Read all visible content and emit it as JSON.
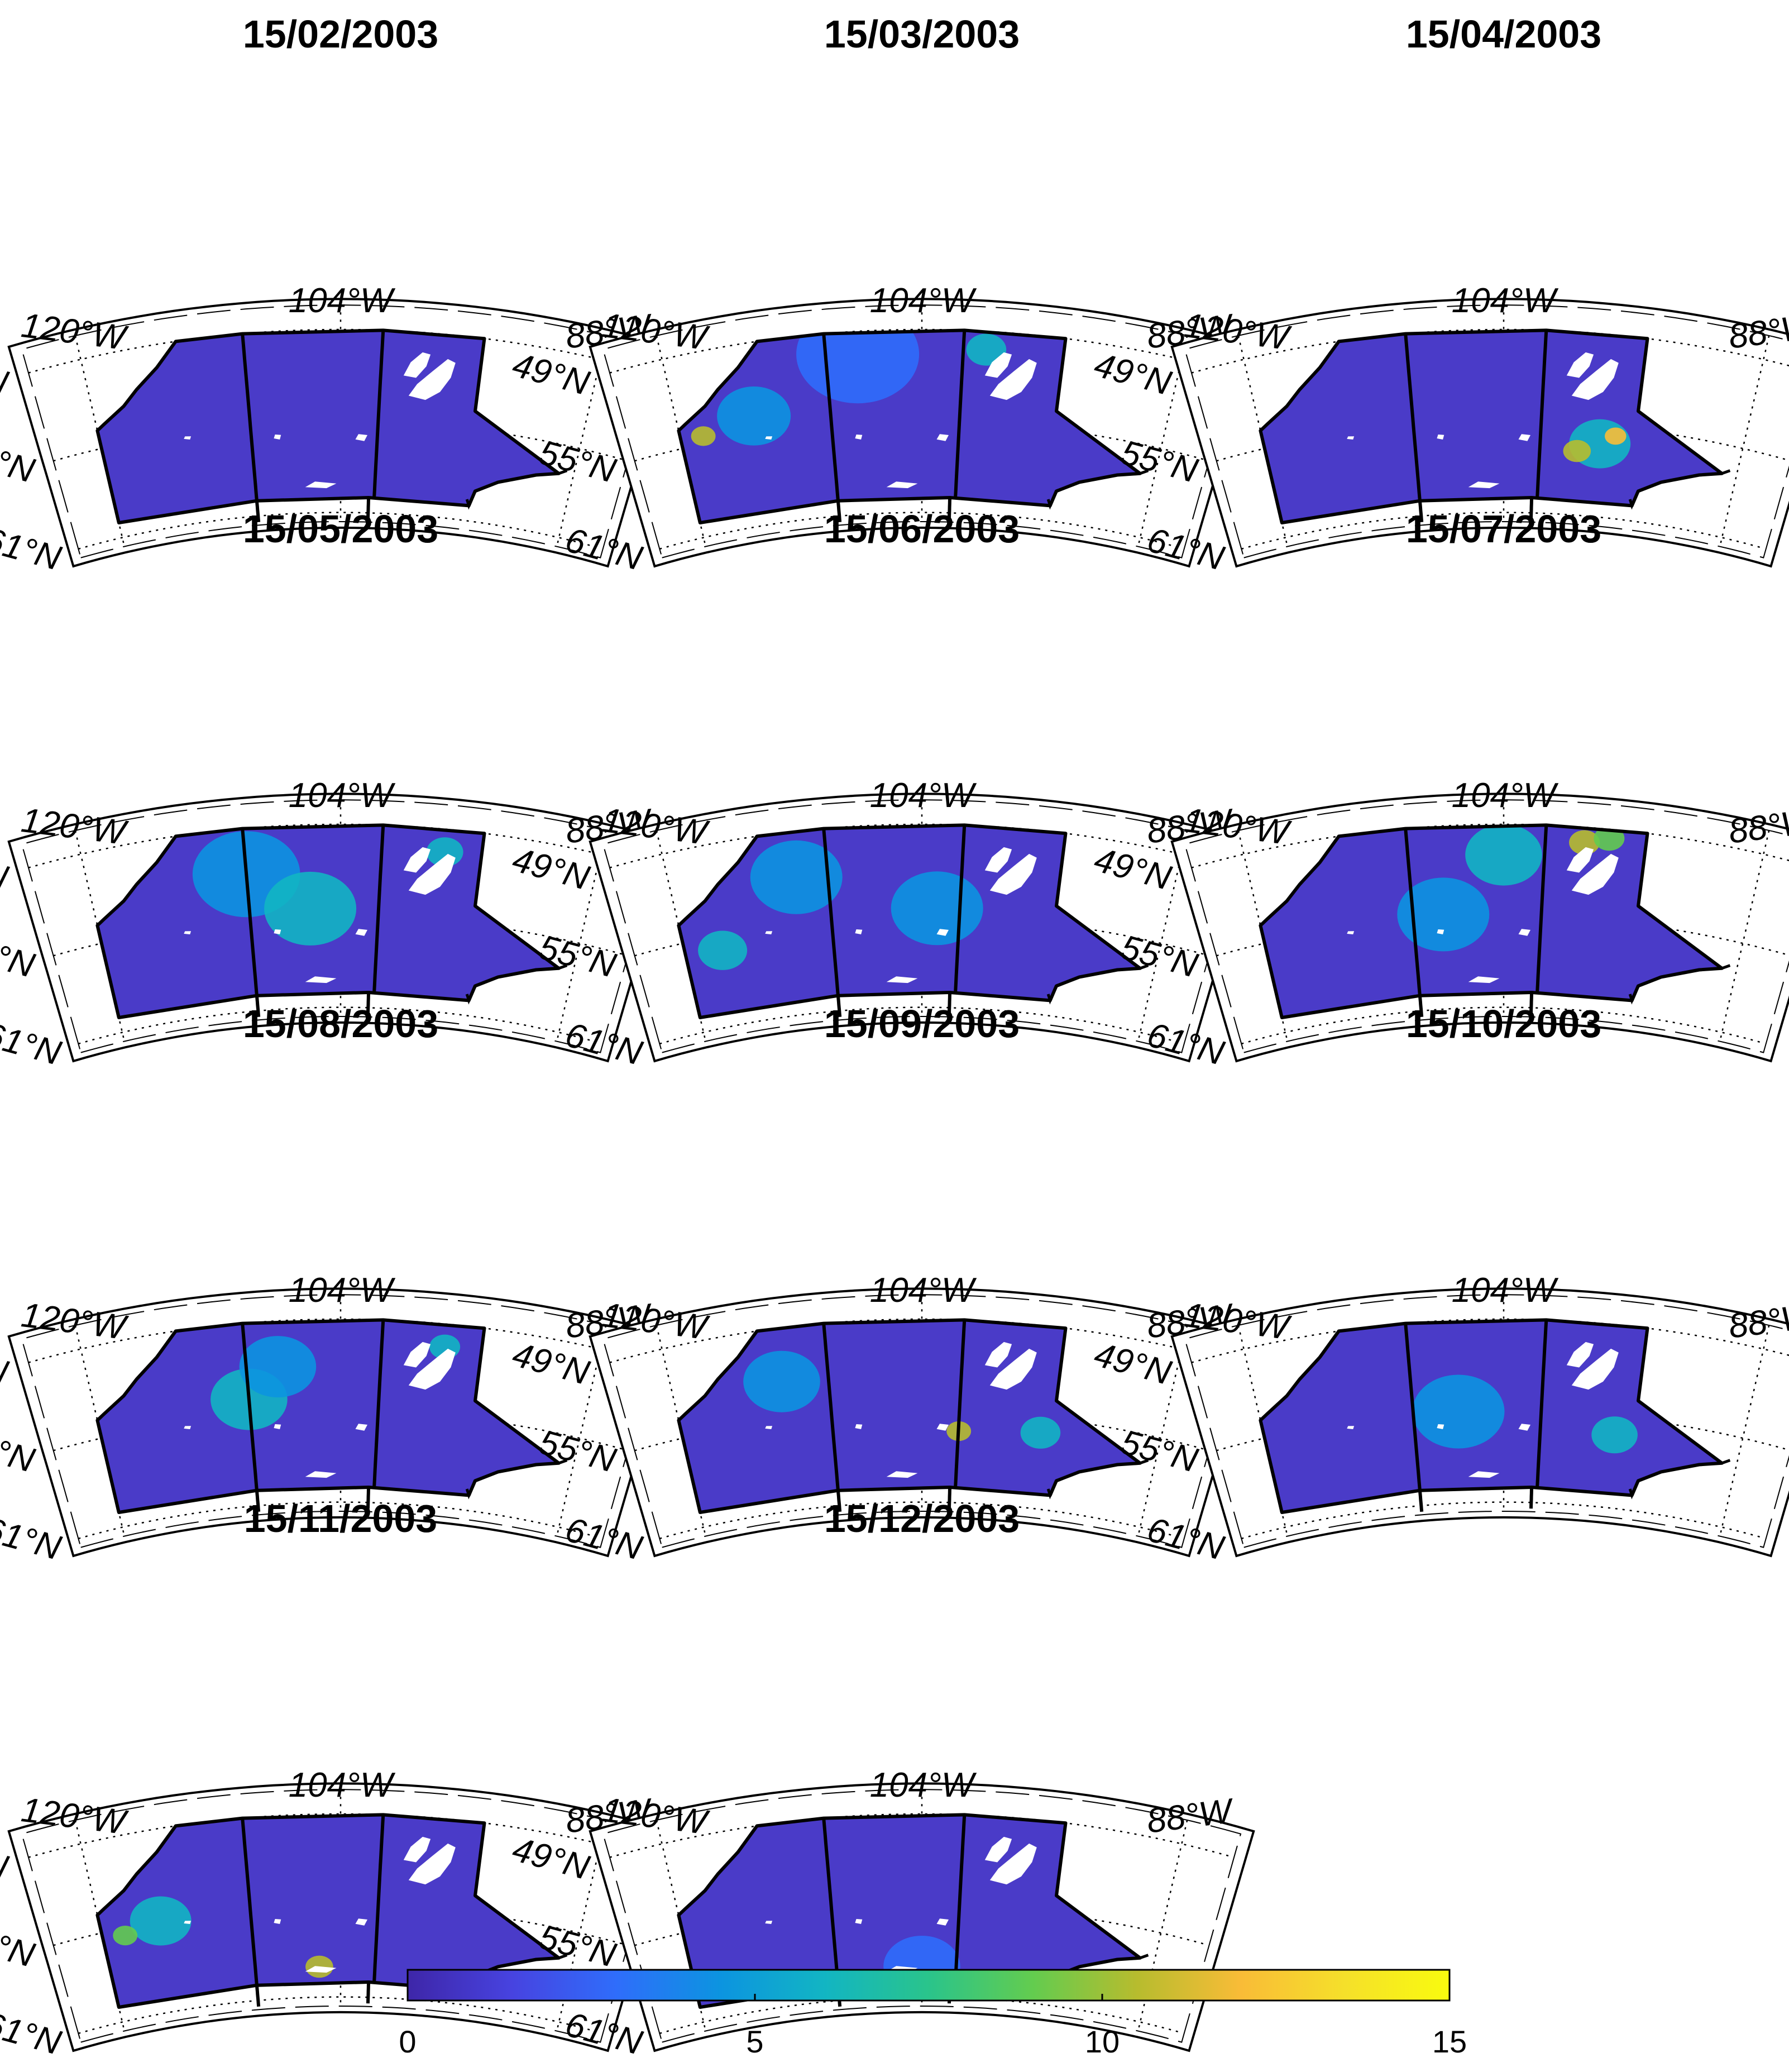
{
  "figure": {
    "panels": [
      {
        "title": "15/02/2003",
        "hotspots": []
      },
      {
        "title": "15/03/2003",
        "hotspots": [
          {
            "lon": -118.5,
            "lat": 54.5,
            "value": 11,
            "r": 0.8
          },
          {
            "lon": -100,
            "lat": 50.2,
            "value": 6.5,
            "r": 1.3
          },
          {
            "lon": -115,
            "lat": 53.8,
            "value": 5,
            "r": 2.4
          },
          {
            "lon": -108,
            "lat": 50.5,
            "value": 3.5,
            "r": 4.0
          }
        ]
      },
      {
        "title": "15/04/2003",
        "hotspots": [
          {
            "lon": -99,
            "lat": 56.8,
            "value": 11,
            "r": 0.9
          },
          {
            "lon": -96.5,
            "lat": 55.6,
            "value": 12,
            "r": 0.7
          },
          {
            "lon": -118.5,
            "lat": 50.5,
            "value": 10,
            "r": 0.5
          },
          {
            "lon": -97.5,
            "lat": 56.2,
            "value": 6,
            "r": 2.0
          }
        ]
      },
      {
        "title": "15/05/2003",
        "hotspots": [
          {
            "lon": -106,
            "lat": 54.5,
            "value": 5.5,
            "r": 3.0
          },
          {
            "lon": -97.5,
            "lat": 50.5,
            "value": 6,
            "r": 1.2
          },
          {
            "lon": -110,
            "lat": 52,
            "value": 4,
            "r": 3.5
          }
        ]
      },
      {
        "title": "15/06/2003",
        "hotspots": [
          {
            "lon": -117.5,
            "lat": 56,
            "value": 6,
            "r": 1.6
          },
          {
            "lon": -112,
            "lat": 52,
            "value": 4,
            "r": 3.0
          },
          {
            "lon": -103,
            "lat": 54.5,
            "value": 3.8,
            "r": 3.0
          }
        ]
      },
      {
        "title": "15/07/2003",
        "hotspots": [
          {
            "lon": -99,
            "lat": 50,
            "value": 10.5,
            "r": 1.0
          },
          {
            "lon": -97.5,
            "lat": 49.6,
            "value": 8.5,
            "r": 1.0
          },
          {
            "lon": -104,
            "lat": 51,
            "value": 5.5,
            "r": 2.5
          },
          {
            "lon": -108,
            "lat": 54.8,
            "value": 4.5,
            "r": 3.0
          }
        ]
      },
      {
        "title": "15/08/2003",
        "hotspots": [
          {
            "lon": -110,
            "lat": 54,
            "value": 5.5,
            "r": 2.5
          },
          {
            "lon": -108,
            "lat": 52,
            "value": 5,
            "r": 2.5
          },
          {
            "lon": -97.5,
            "lat": 50.5,
            "value": 5.5,
            "r": 1.0
          }
        ]
      },
      {
        "title": "15/09/2003",
        "hotspots": [
          {
            "lon": -101.5,
            "lat": 56.3,
            "value": 10.5,
            "r": 0.8
          },
          {
            "lon": -96,
            "lat": 56,
            "value": 6.5,
            "r": 1.3
          },
          {
            "lon": -113,
            "lat": 52.5,
            "value": 5,
            "r": 2.5
          }
        ]
      },
      {
        "title": "15/10/2003",
        "hotspots": [
          {
            "lon": -96.5,
            "lat": 56.2,
            "value": 6,
            "r": 1.5
          },
          {
            "lon": -107,
            "lat": 55,
            "value": 4,
            "r": 3.0
          }
        ]
      },
      {
        "title": "15/11/2003",
        "hotspots": [
          {
            "lon": -105.5,
            "lat": 59,
            "value": 10.5,
            "r": 0.9
          },
          {
            "lon": -118.5,
            "lat": 55.5,
            "value": 9,
            "r": 0.8
          },
          {
            "lon": -116,
            "lat": 55,
            "value": 6,
            "r": 2.0
          }
        ]
      },
      {
        "title": "15/12/2003",
        "hotspots": [
          {
            "lon": -104,
            "lat": 59,
            "value": 3.5,
            "r": 2.5
          }
        ]
      }
    ],
    "lat_labels": [
      "61°N",
      "55°N",
      "49°N"
    ],
    "lon_labels": [
      "120°W",
      "104°W",
      "88°W"
    ],
    "colorbar": {
      "min": 0,
      "max": 15,
      "ticks": [
        "0",
        "5",
        "10",
        "15"
      ],
      "colors": [
        "#3e26a8",
        "#4743e0",
        "#2f6dfb",
        "#0c94e0",
        "#12b5c3",
        "#2ac48b",
        "#63cc4f",
        "#b7bc2e",
        "#f9bc37",
        "#f5e02a",
        "#f9fb0e"
      ]
    },
    "palette": {
      "background": "#4a3bc8",
      "outline": "#000000",
      "water": "#ffffff"
    }
  }
}
